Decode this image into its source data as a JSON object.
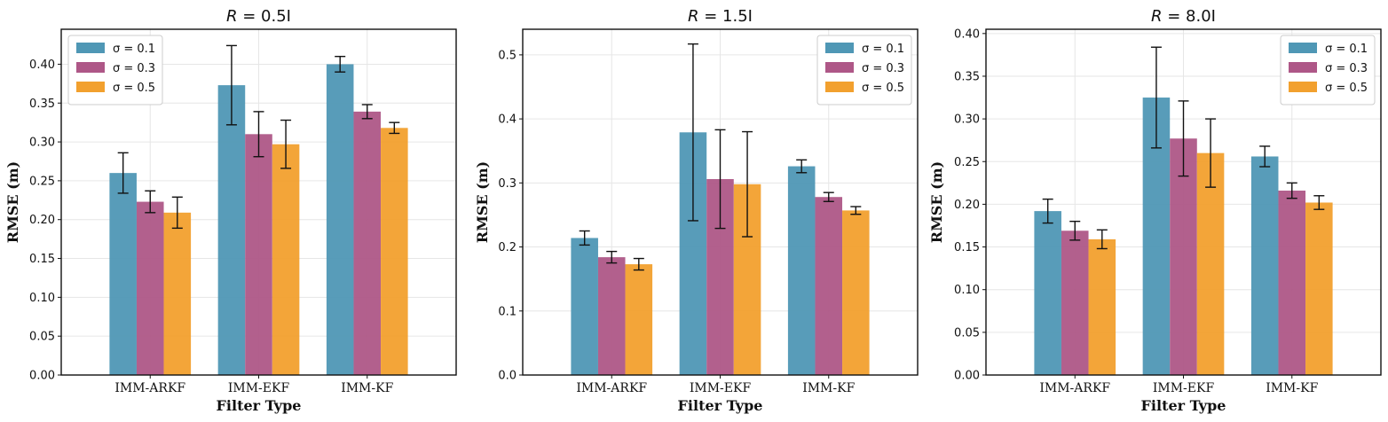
{
  "chart_data": [
    {
      "type": "bar",
      "title_prefix": "R",
      "title": "= 0.5I",
      "xlabel": "Filter Type",
      "ylabel": "RMSE (m)",
      "categories": [
        "IMM-ARKF",
        "IMM-EKF",
        "IMM-KF"
      ],
      "ylim": [
        0,
        0.445
      ],
      "yticks": [
        "0.00",
        "0.05",
        "0.10",
        "0.15",
        "0.20",
        "0.25",
        "0.30",
        "0.35",
        "0.40"
      ],
      "legend_position": "top-left",
      "series": [
        {
          "name": "σ = 0.1",
          "color": "#4f97b5",
          "values": [
            0.26,
            0.373,
            0.4
          ],
          "err": [
            0.026,
            0.051,
            0.01
          ]
        },
        {
          "name": "σ = 0.3",
          "color": "#ae5787",
          "values": [
            0.223,
            0.31,
            0.339
          ],
          "err": [
            0.014,
            0.029,
            0.009
          ]
        },
        {
          "name": "σ = 0.5",
          "color": "#f2a02e",
          "values": [
            0.209,
            0.297,
            0.318
          ],
          "err": [
            0.02,
            0.031,
            0.007
          ]
        }
      ]
    },
    {
      "type": "bar",
      "title_prefix": "R",
      "title": "= 1.5I",
      "xlabel": "Filter Type",
      "ylabel": "RMSE (m)",
      "categories": [
        "IMM-ARKF",
        "IMM-EKF",
        "IMM-KF"
      ],
      "ylim": [
        0,
        0.54
      ],
      "yticks": [
        "0.0",
        "0.1",
        "0.2",
        "0.3",
        "0.4",
        "0.5"
      ],
      "legend_position": "top-right",
      "series": [
        {
          "name": "σ = 0.1",
          "color": "#4f97b5",
          "values": [
            0.214,
            0.379,
            0.326
          ],
          "err": [
            0.011,
            0.138,
            0.01
          ]
        },
        {
          "name": "σ = 0.3",
          "color": "#ae5787",
          "values": [
            0.184,
            0.306,
            0.278
          ],
          "err": [
            0.009,
            0.077,
            0.007
          ]
        },
        {
          "name": "σ = 0.5",
          "color": "#f2a02e",
          "values": [
            0.173,
            0.298,
            0.257
          ],
          "err": [
            0.009,
            0.082,
            0.006
          ]
        }
      ]
    },
    {
      "type": "bar",
      "title_prefix": "R",
      "title": "= 8.0I",
      "xlabel": "Filter Type",
      "ylabel": "RMSE (m)",
      "categories": [
        "IMM-ARKF",
        "IMM-EKF",
        "IMM-KF"
      ],
      "ylim": [
        0,
        0.405
      ],
      "yticks": [
        "0.00",
        "0.05",
        "0.10",
        "0.15",
        "0.20",
        "0.25",
        "0.30",
        "0.35",
        "0.40"
      ],
      "legend_position": "top-right",
      "series": [
        {
          "name": "σ = 0.1",
          "color": "#4f97b5",
          "values": [
            0.192,
            0.325,
            0.256
          ],
          "err": [
            0.014,
            0.059,
            0.012
          ]
        },
        {
          "name": "σ = 0.3",
          "color": "#ae5787",
          "values": [
            0.169,
            0.277,
            0.216
          ],
          "err": [
            0.011,
            0.044,
            0.009
          ]
        },
        {
          "name": "σ = 0.5",
          "color": "#f2a02e",
          "values": [
            0.159,
            0.26,
            0.202
          ],
          "err": [
            0.011,
            0.04,
            0.008
          ]
        }
      ]
    }
  ]
}
